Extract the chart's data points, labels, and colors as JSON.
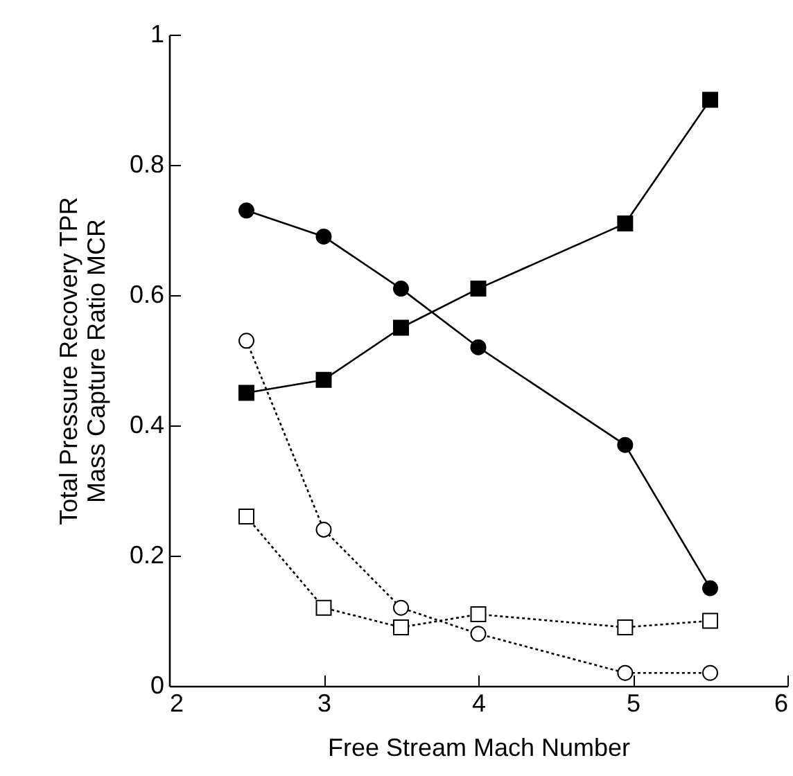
{
  "chart_data": {
    "type": "line",
    "xlabel": "Free Stream Mach Number",
    "ylabel": "Total Pressure Recovery  TPR\nMass Capture Ratio  MCR",
    "xlim": [
      2,
      6
    ],
    "xticks": [
      2,
      3,
      4,
      5,
      6
    ],
    "ylim": [
      0,
      1
    ],
    "yticks": [
      0,
      0.2,
      0.4,
      0.6,
      0.8,
      1
    ],
    "grid": false,
    "series": [
      {
        "color": "#000000",
        "marker": "circle",
        "line_style": "solid",
        "x": [
          2.5,
          3,
          3.5,
          4,
          4.95,
          5.5
        ],
        "values": [
          0.73,
          0.69,
          0.61,
          0.52,
          0.37,
          0.15
        ]
      },
      {
        "color": "#000000",
        "marker": "square",
        "line_style": "solid",
        "x": [
          2.5,
          3,
          3.5,
          4,
          4.95,
          5.5
        ],
        "values": [
          0.45,
          0.47,
          0.55,
          0.61,
          0.71,
          0.9
        ]
      },
      {
        "color": "#000000",
        "marker": "circle",
        "line_style": "dotted",
        "x": [
          2.5,
          3,
          3.5,
          4,
          4.95,
          5.5
        ],
        "values": [
          0.53,
          0.24,
          0.12,
          0.08,
          0.02,
          0.02
        ]
      },
      {
        "color": "#000000",
        "marker": "square",
        "line_style": "dotted",
        "x": [
          2.5,
          3,
          3.5,
          4,
          4.95,
          5.5
        ],
        "values": [
          0.26,
          0.12,
          0.09,
          0.11,
          0.09,
          0.1
        ]
      }
    ]
  }
}
